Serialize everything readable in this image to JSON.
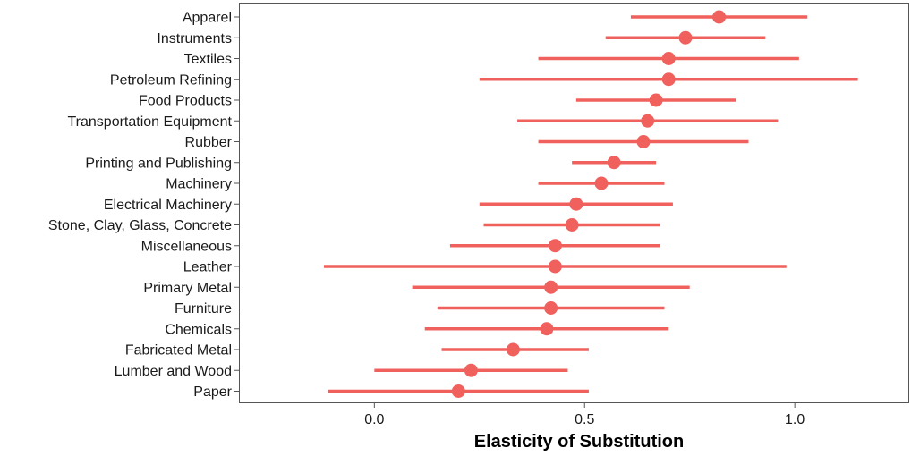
{
  "chart_data": {
    "type": "scatter",
    "subtype": "dot-and-whisker",
    "title": "",
    "xlabel": "Elasticity of Substitution",
    "ylabel": "",
    "xlim": [
      -0.32,
      1.27
    ],
    "xticks": [
      0.0,
      0.5,
      1.0
    ],
    "xtick_labels": [
      "0.0",
      "0.5",
      "1.0"
    ],
    "grid": false,
    "legend": "none",
    "color": "#f0605d",
    "categories": [
      "Apparel",
      "Instruments",
      "Textiles",
      "Petroleum Refining",
      "Food Products",
      "Transportation Equipment",
      "Rubber",
      "Printing and Publishing",
      "Machinery",
      "Electrical Machinery",
      "Stone, Clay, Glass, Concrete",
      "Miscellaneous",
      "Leather",
      "Primary Metal",
      "Furniture",
      "Chemicals",
      "Fabricated Metal",
      "Lumber and Wood",
      "Paper"
    ],
    "estimates": [
      0.82,
      0.74,
      0.7,
      0.7,
      0.67,
      0.65,
      0.64,
      0.57,
      0.54,
      0.48,
      0.47,
      0.43,
      0.43,
      0.42,
      0.42,
      0.41,
      0.33,
      0.23,
      0.2
    ],
    "lower": [
      0.61,
      0.55,
      0.39,
      0.25,
      0.48,
      0.34,
      0.39,
      0.47,
      0.39,
      0.25,
      0.26,
      0.18,
      -0.12,
      0.09,
      0.15,
      0.12,
      0.16,
      0.0,
      -0.11
    ],
    "upper": [
      1.03,
      0.93,
      1.01,
      1.15,
      0.86,
      0.96,
      0.89,
      0.67,
      0.69,
      0.71,
      0.68,
      0.68,
      0.98,
      0.75,
      0.69,
      0.7,
      0.51,
      0.46,
      0.51
    ]
  }
}
